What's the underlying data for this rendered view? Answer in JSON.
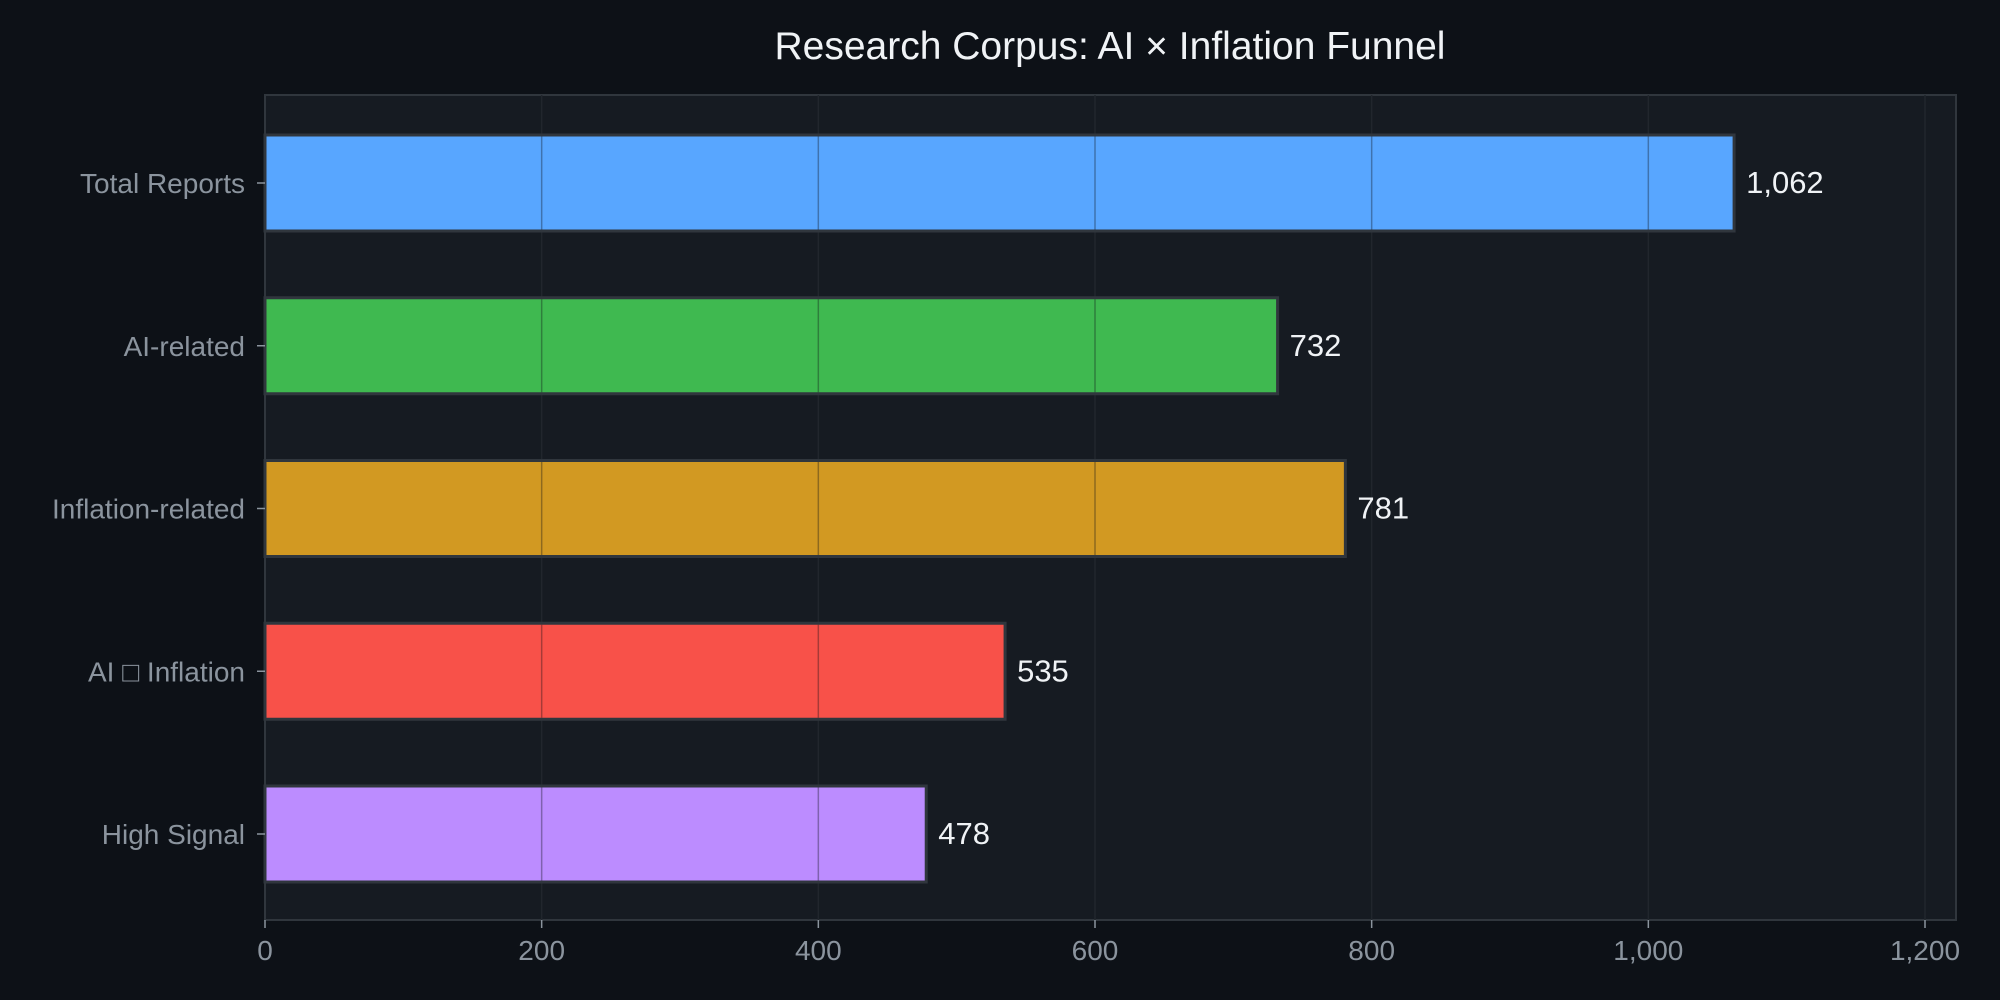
{
  "chart_data": {
    "type": "bar",
    "orientation": "horizontal",
    "title": "Research Corpus: AI × Inflation Funnel",
    "xlabel": "",
    "ylabel": "",
    "categories": [
      "Total Reports",
      "AI-related",
      "Inflation-related",
      "AI □ Inflation",
      "High Signal"
    ],
    "values": [
      1062,
      732,
      781,
      535,
      478
    ],
    "value_labels": [
      "1,062",
      "732",
      "781",
      "535",
      "478"
    ],
    "colors": [
      "#58a6ff",
      "#3fb950",
      "#d29922",
      "#f85149",
      "#bc8cff"
    ],
    "xlim": [
      0,
      1220
    ],
    "xticks": [
      0,
      200,
      400,
      600,
      800,
      1000,
      1200
    ],
    "xtick_labels": [
      "0",
      "200",
      "400",
      "600",
      "800",
      "1,000",
      "1,200"
    ],
    "grid": true,
    "legend": "none"
  },
  "theme": {
    "page_background": "#0d1117",
    "plot_background": "#161b22",
    "axis_color": "#30363d",
    "text_color": "#f0f3f6",
    "muted_text_color": "#8b949e"
  }
}
